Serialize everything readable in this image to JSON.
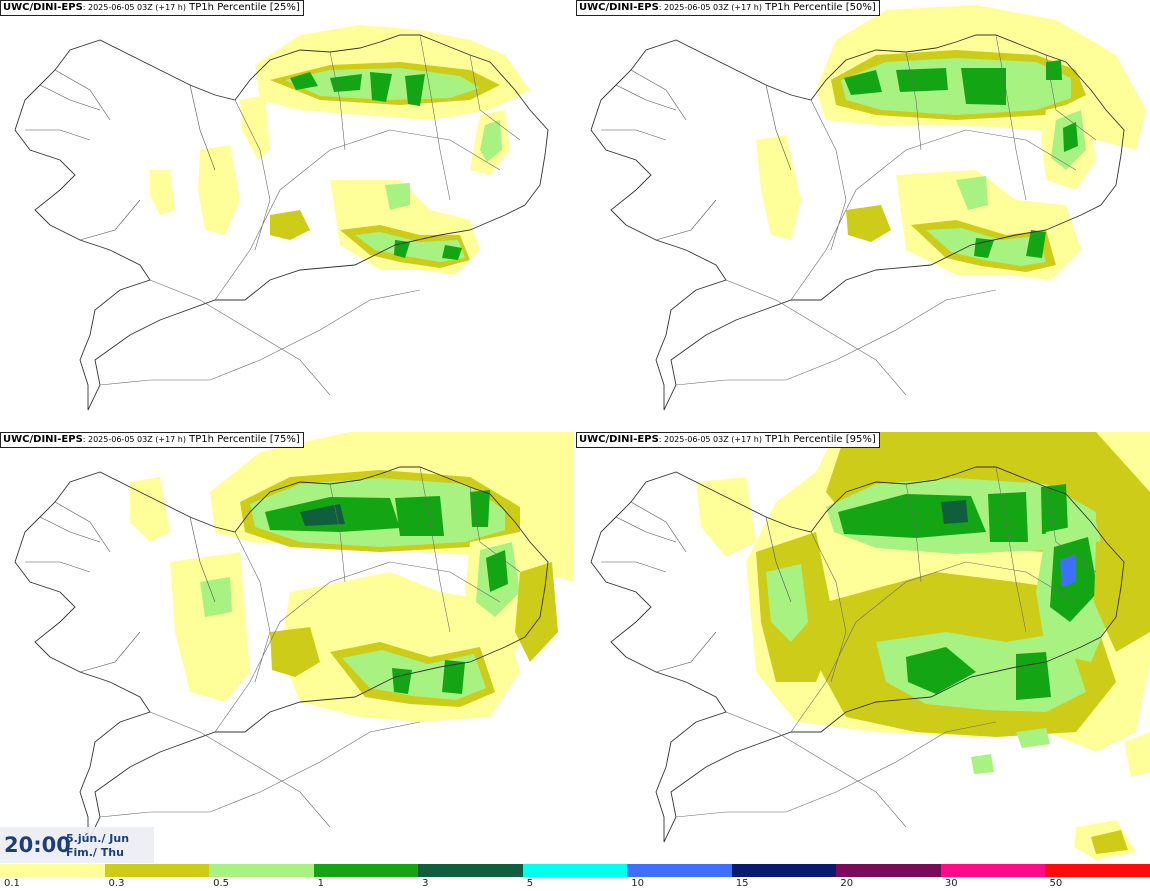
{
  "panels": [
    {
      "model": "UWC/DINI-EPS",
      "run": ": 2025-06-05 03Z (+17 h)",
      "variable": "TP1h Percentile [25%]",
      "percentile": 25
    },
    {
      "model": "UWC/DINI-EPS",
      "run": ": 2025-06-05 03Z (+17 h)",
      "variable": "TP1h Percentile [50%]",
      "percentile": 50
    },
    {
      "model": "UWC/DINI-EPS",
      "run": ": 2025-06-05 03Z (+17 h)",
      "variable": "TP1h Percentile [75%]",
      "percentile": 75
    },
    {
      "model": "UWC/DINI-EPS",
      "run": ": 2025-06-05 03Z (+17 h)",
      "variable": "TP1h Percentile [95%]",
      "percentile": 95
    }
  ],
  "valid_time": {
    "clock": "20:00",
    "date_line": "5.jún./ Jun",
    "day_line": "Fim./ Thu"
  },
  "legend": {
    "labels": [
      "0.1",
      "0.3",
      "0.5",
      "1",
      "3",
      "5",
      "10",
      "15",
      "20",
      "30",
      "50"
    ],
    "colors": [
      "#ffff99",
      "#cccc19",
      "#a8f282",
      "#14a514",
      "#0f5f3f",
      "#00ffee",
      "#3f6fff",
      "#0a1a6e",
      "#7a0a5a",
      "#ff0a8a",
      "#ff0a0a"
    ]
  },
  "colors": {
    "title_text": "#000000",
    "time_text": "#1c3f78",
    "coast": "#333333"
  }
}
